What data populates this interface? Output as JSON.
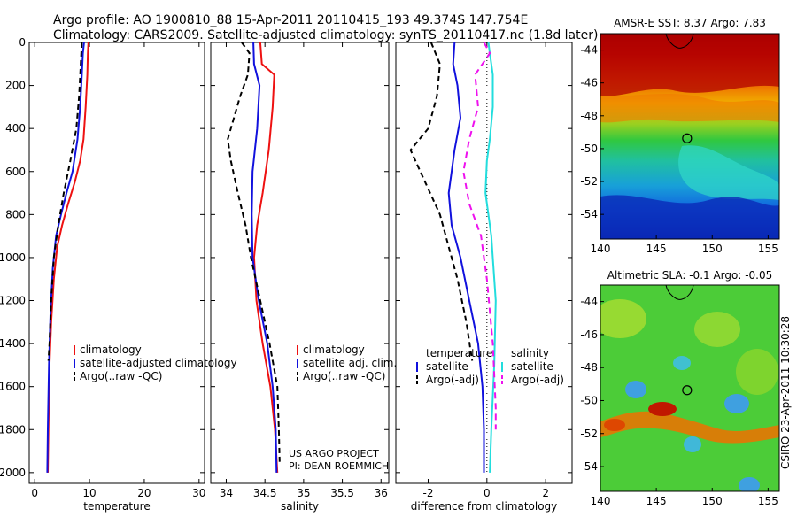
{
  "header": {
    "line1": "Argo profile: AO 1900810_88 15-Apr-2011 20110415_193 49.374S 147.754E",
    "line2": "Climatology: CARS2009. Satellite-adjusted climatology: synTS_20110417.nc (1.8d later)"
  },
  "side_label": "CSIRO 23-Apr-2011 10:30:28",
  "credit": {
    "line1": "US ARGO PROJECT",
    "line2": "PI: DEAN ROEMMICH"
  },
  "colors": {
    "clim": "#ee1111",
    "sat": "#1111dd",
    "argo": "#000000",
    "sat_sal": "#22dddd",
    "argo_sal": "#ee11ee"
  },
  "chart_data": [
    {
      "type": "line",
      "xlabel": "temperature",
      "xlim": [
        -1,
        31
      ],
      "xticks": [
        0,
        10,
        20,
        30
      ],
      "ylim": [
        0,
        2050
      ],
      "yticks": [
        0,
        200,
        400,
        600,
        800,
        1000,
        1200,
        1400,
        1600,
        1800,
        2000
      ],
      "legend": [
        "climatology",
        "satellite-adjusted climatology",
        "Argo(..raw -QC)"
      ],
      "series": [
        {
          "name": "climatology",
          "color": "#ee1111",
          "dash": "",
          "x": [
            9.8,
            9.7,
            9.6,
            9.3,
            8.9,
            8.3,
            7.3,
            6.1,
            5.0,
            4.1,
            3.5,
            3.0,
            2.7,
            2.5,
            2.4
          ],
          "y": [
            0,
            50,
            150,
            300,
            450,
            550,
            650,
            750,
            850,
            950,
            1100,
            1300,
            1500,
            1800,
            2000
          ]
        },
        {
          "name": "satellite-adjusted climatology",
          "color": "#1111dd",
          "dash": "",
          "x": [
            9.0,
            8.8,
            8.6,
            8.3,
            7.8,
            6.9,
            5.8,
            4.8,
            3.9,
            3.3,
            2.9,
            2.6,
            2.4,
            2.3
          ],
          "y": [
            0,
            50,
            150,
            300,
            450,
            600,
            700,
            800,
            900,
            1050,
            1250,
            1500,
            1800,
            2000
          ]
        },
        {
          "name": "Argo(..raw -QC)",
          "color": "#000000",
          "dash": "6,4",
          "x": [
            8.6,
            8.4,
            8.1,
            7.6,
            6.5,
            5.3,
            4.3,
            3.5,
            3.0,
            2.7,
            2.5
          ],
          "y": [
            0,
            100,
            250,
            400,
            550,
            700,
            850,
            1000,
            1200,
            1400,
            1480
          ]
        }
      ]
    },
    {
      "type": "line",
      "xlabel": "salinity",
      "xlim": [
        33.8,
        36.1
      ],
      "xticks": [
        34,
        34.5,
        35,
        35.5,
        36
      ],
      "ylim": [
        0,
        2050
      ],
      "yticks": [
        0,
        200,
        400,
        600,
        800,
        1000,
        1200,
        1400,
        1600,
        1800,
        2000
      ],
      "legend": [
        "climatology",
        "satellite adj. clim.",
        "Argo(..raw -QC)"
      ],
      "series": [
        {
          "name": "climatology",
          "color": "#ee1111",
          "dash": "",
          "x": [
            34.44,
            34.46,
            34.62,
            34.6,
            34.55,
            34.47,
            34.4,
            34.36,
            34.39,
            34.47,
            34.57,
            34.63,
            34.66
          ],
          "y": [
            0,
            100,
            150,
            300,
            500,
            700,
            850,
            1000,
            1200,
            1400,
            1600,
            1800,
            2000
          ]
        },
        {
          "name": "satellite adj. clim.",
          "color": "#1111dd",
          "dash": "",
          "x": [
            34.35,
            34.36,
            34.43,
            34.4,
            34.34,
            34.33,
            34.34,
            34.42,
            34.53,
            34.6,
            34.64,
            34.65
          ],
          "y": [
            0,
            100,
            200,
            400,
            600,
            800,
            1000,
            1200,
            1400,
            1600,
            1800,
            2000
          ]
        },
        {
          "name": "Argo(..raw -QC)",
          "color": "#000000",
          "dash": "6,4",
          "x": [
            34.2,
            34.3,
            34.28,
            34.18,
            34.1,
            34.02,
            34.06,
            34.15,
            34.25,
            34.32,
            34.44,
            34.56,
            34.66,
            34.68,
            34.69
          ],
          "y": [
            0,
            50,
            150,
            250,
            350,
            450,
            550,
            700,
            850,
            1000,
            1200,
            1400,
            1600,
            1800,
            1950
          ]
        }
      ]
    },
    {
      "type": "line",
      "xlabel": "difference from climatology",
      "xlim": [
        -3.1,
        2.9
      ],
      "xticks": [
        -2,
        0,
        2
      ],
      "ylim": [
        0,
        2050
      ],
      "yticks": [
        0,
        200,
        400,
        600,
        800,
        1000,
        1200,
        1400,
        1600,
        1800,
        2000
      ],
      "legend": [
        "temperature",
        "satellite",
        "Argo(-adj)",
        "salinity",
        "satellite",
        "Argo(-adj)"
      ],
      "series": [
        {
          "name": "satellite",
          "color": "#1111dd",
          "dash": "",
          "x": [
            -1.1,
            -1.15,
            -1.0,
            -0.9,
            -1.1,
            -1.2,
            -1.3,
            -1.2,
            -0.9,
            -0.6,
            -0.3,
            -0.15,
            -0.1,
            -0.1
          ],
          "y": [
            0,
            100,
            200,
            350,
            500,
            600,
            700,
            850,
            1000,
            1200,
            1400,
            1600,
            1800,
            2000
          ]
        },
        {
          "name": "Argo(-adj)",
          "color": "#000000",
          "dash": "6,4",
          "x": [
            -1.9,
            -1.6,
            -1.7,
            -2.0,
            -2.6,
            -2.1,
            -1.6,
            -1.3,
            -1.0,
            -0.7,
            -0.5
          ],
          "y": [
            0,
            100,
            250,
            400,
            500,
            650,
            800,
            950,
            1100,
            1300,
            1480
          ]
        },
        {
          "name": "satellite",
          "color": "#22dddd",
          "dash": "",
          "x": [
            0.05,
            0.1,
            0.2,
            0.2,
            0.1,
            0.0,
            -0.05,
            0.15,
            0.3,
            0.25,
            0.15,
            0.1
          ],
          "y": [
            0,
            50,
            150,
            300,
            450,
            550,
            700,
            900,
            1200,
            1500,
            1800,
            2000
          ]
        },
        {
          "name": "Argo(-adj)",
          "color": "#ee11ee",
          "dash": "7,5",
          "x": [
            -0.1,
            0.1,
            -0.4,
            -0.3,
            -0.6,
            -0.8,
            -0.6,
            -0.2,
            0.0,
            0.2,
            0.3,
            0.3
          ],
          "y": [
            0,
            50,
            150,
            300,
            450,
            600,
            750,
            900,
            1100,
            1400,
            1700,
            1800
          ]
        }
      ]
    },
    {
      "type": "heatmap",
      "title": "AMSR-E SST: 8.37 Argo: 7.83",
      "xlim": [
        140,
        156
      ],
      "xticks": [
        140,
        145,
        150,
        155
      ],
      "ylim": [
        -55.5,
        -43
      ],
      "yticks": [
        -44,
        -46,
        -48,
        -50,
        -52,
        -54
      ],
      "marker": [
        147.75,
        -49.37
      ]
    },
    {
      "type": "heatmap",
      "title": "Altimetric SLA: -0.1 Argo: -0.05",
      "xlim": [
        140,
        156
      ],
      "xticks": [
        140,
        145,
        150,
        155
      ],
      "ylim": [
        -55.5,
        -43
      ],
      "yticks": [
        -44,
        -46,
        -48,
        -50,
        -52,
        -54
      ],
      "marker": [
        147.75,
        -49.37
      ]
    }
  ]
}
